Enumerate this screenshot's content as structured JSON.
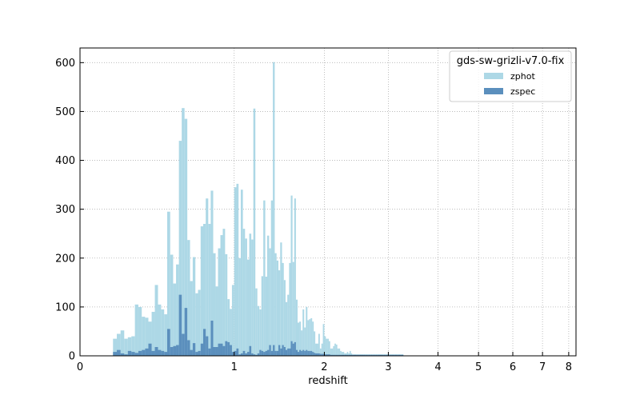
{
  "chart_data": {
    "type": "bar",
    "histogram": true,
    "xlabel": "redshift",
    "ylabel": "",
    "x_scale": "log(1+z)",
    "xlim": [
      0,
      8.3
    ],
    "ylim": [
      0,
      630
    ],
    "grid": true,
    "x_ticks": [
      0,
      1,
      2,
      3,
      4,
      5,
      6,
      7,
      8
    ],
    "y_ticks": [
      0,
      100,
      200,
      300,
      400,
      500,
      600
    ],
    "legend": {
      "title": "gds-sw-grizli-v7.0-fix",
      "position": "top-right"
    },
    "bin_left_edges_1pz": [
      1.16,
      1.18,
      1.2,
      1.22,
      1.24,
      1.26,
      1.28,
      1.3,
      1.32,
      1.34,
      1.36,
      1.38,
      1.4,
      1.42,
      1.44,
      1.46,
      1.48,
      1.5,
      1.52,
      1.54,
      1.56,
      1.58,
      1.6,
      1.62,
      1.64,
      1.66,
      1.68,
      1.7,
      1.72,
      1.74,
      1.76,
      1.78,
      1.8,
      1.82,
      1.84,
      1.86,
      1.88,
      1.9,
      1.92,
      1.94,
      1.96,
      1.98,
      2.0,
      2.02,
      2.04,
      2.06,
      2.08,
      2.1,
      2.12,
      2.14,
      2.16,
      2.18,
      2.2,
      2.22,
      2.24,
      2.26,
      2.28,
      2.3,
      2.32,
      2.34,
      2.36,
      2.38,
      2.4,
      2.42,
      2.44,
      2.46,
      2.48,
      2.5,
      2.52,
      2.54,
      2.56,
      2.58,
      2.6,
      2.62,
      2.64,
      2.66,
      2.68,
      2.7,
      2.72,
      2.74,
      2.76,
      2.78,
      2.8,
      2.82,
      2.84,
      2.86,
      2.88,
      2.9,
      2.92,
      2.94,
      2.96,
      2.98,
      3.0,
      3.02,
      3.04,
      3.06,
      3.08,
      3.1,
      3.12,
      3.14,
      3.16,
      3.18,
      3.2,
      3.22,
      3.24,
      3.26,
      3.28,
      3.3,
      3.32,
      3.34,
      3.36,
      3.38,
      3.4,
      3.42,
      3.44,
      3.46,
      3.48,
      3.5,
      3.52,
      3.54,
      3.56,
      3.58,
      3.6,
      3.62,
      3.64,
      3.66,
      3.68,
      3.7,
      3.72,
      3.74,
      3.76,
      3.78,
      3.8,
      3.82,
      3.84,
      3.86,
      3.88,
      3.9,
      3.92,
      3.94,
      3.96,
      3.98,
      4.0,
      4.02,
      4.04,
      4.06,
      4.08,
      4.1,
      4.12,
      4.14,
      4.16,
      4.18,
      4.2,
      4.22,
      4.24,
      4.26,
      4.28
    ],
    "series": [
      {
        "name": "zphot",
        "color": "#add8e6",
        "values": [
          35,
          45,
          52,
          35,
          38,
          40,
          105,
          100,
          80,
          78,
          70,
          90,
          145,
          105,
          95,
          85,
          295,
          207,
          148,
          187,
          440,
          507,
          485,
          237,
          153,
          202,
          128,
          135,
          265,
          270,
          322,
          270,
          338,
          210,
          142,
          220,
          247,
          260,
          208,
          116,
          96,
          145,
          345,
          352,
          200,
          340,
          260,
          240,
          197,
          250,
          238,
          506,
          138,
          102,
          95,
          163,
          318,
          162,
          246,
          220,
          318,
          601,
          210,
          195,
          175,
          232,
          190,
          155,
          110,
          125,
          190,
          328,
          192,
          322,
          115,
          68,
          70,
          52,
          95,
          58,
          100,
          73,
          75,
          77,
          70,
          50,
          25,
          25,
          45,
          15,
          25,
          65,
          40,
          35,
          35,
          30,
          15,
          15,
          20,
          25,
          23,
          15,
          15,
          10,
          8,
          8,
          5,
          5,
          8,
          5,
          10,
          5,
          3,
          3,
          3,
          3,
          3,
          3,
          3,
          3,
          3,
          3,
          3,
          3,
          3,
          3,
          3,
          3,
          3,
          3,
          3,
          3,
          3,
          3,
          3,
          3,
          3,
          3,
          3,
          3,
          3,
          3,
          3,
          3,
          3,
          3,
          3,
          3,
          3,
          3,
          3,
          3,
          3,
          3,
          3,
          3
        ]
      },
      {
        "name": "zspec",
        "color": "#5b8fbd",
        "values": [
          8,
          12,
          5,
          3,
          10,
          8,
          6,
          10,
          12,
          15,
          25,
          10,
          18,
          12,
          10,
          8,
          55,
          18,
          20,
          22,
          125,
          45,
          98,
          32,
          12,
          26,
          8,
          10,
          25,
          55,
          40,
          15,
          72,
          18,
          18,
          25,
          25,
          20,
          30,
          28,
          22,
          8,
          10,
          15,
          3,
          5,
          10,
          5,
          8,
          20,
          5,
          3,
          2,
          5,
          12,
          10,
          8,
          10,
          12,
          22,
          10,
          22,
          10,
          10,
          22,
          15,
          22,
          18,
          12,
          15,
          15,
          30,
          25,
          28,
          12,
          8,
          12,
          10,
          12,
          10,
          12,
          10,
          10,
          10,
          8,
          6,
          5,
          5,
          5,
          4,
          4,
          4,
          3,
          3,
          3,
          3,
          2,
          2,
          2,
          2,
          2,
          2,
          2,
          2,
          2,
          2,
          2,
          2,
          2,
          2,
          2,
          2,
          2,
          2,
          2,
          2,
          2,
          2,
          2,
          2,
          2,
          2,
          2,
          2,
          2,
          2,
          2,
          2,
          2,
          2,
          2,
          2,
          2,
          2,
          2,
          2,
          2,
          2,
          2,
          2,
          2,
          2,
          2,
          2,
          2,
          2,
          2,
          2,
          2,
          2,
          2,
          2,
          2,
          2,
          2,
          2
        ]
      }
    ]
  }
}
